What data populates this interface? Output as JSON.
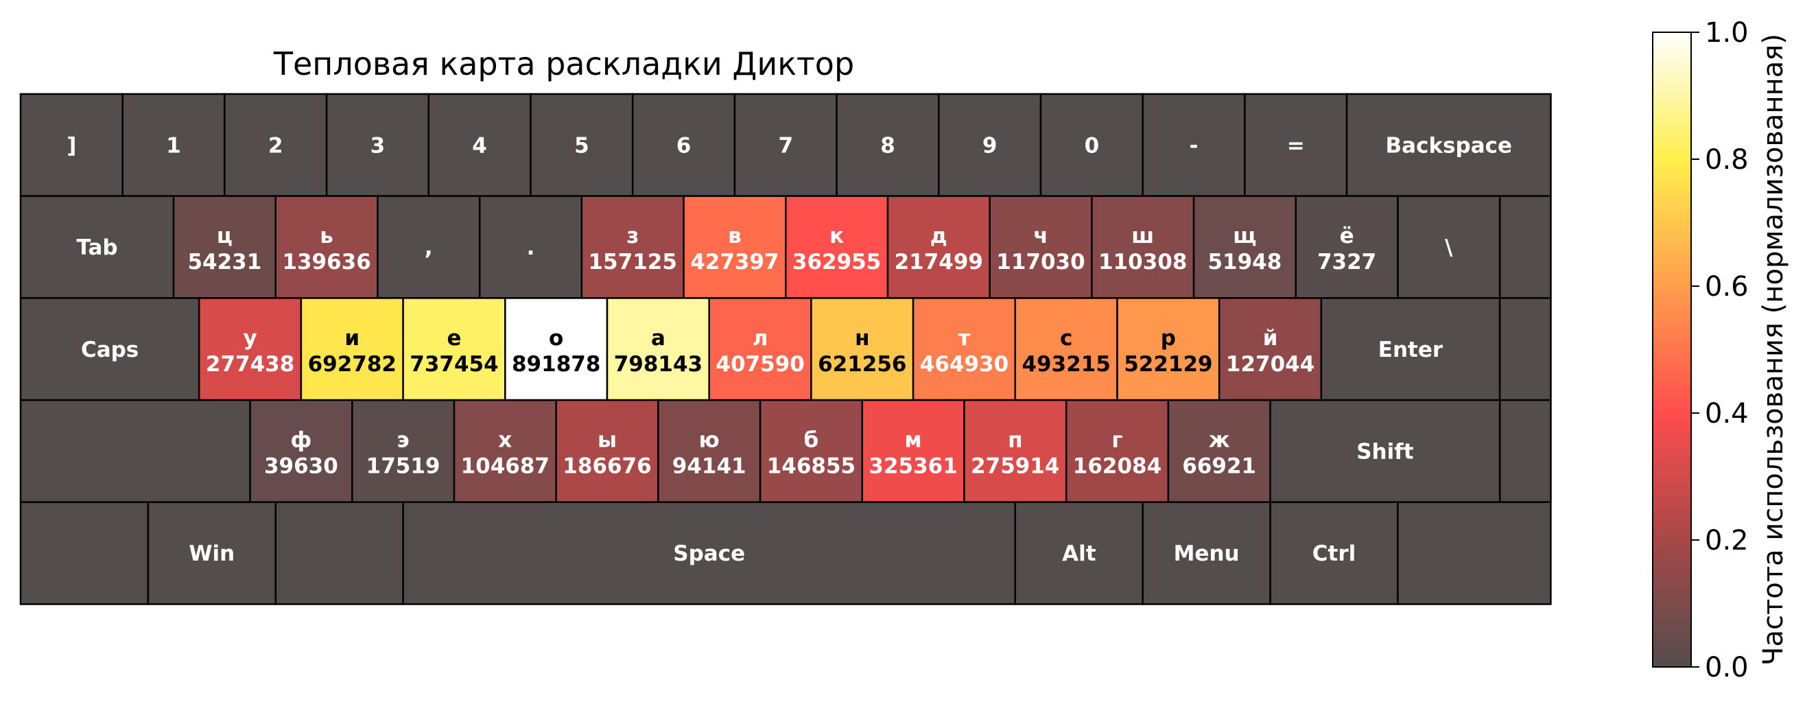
{
  "chart_data": {
    "type": "heatmap",
    "title": "Тепловая карта раскладки Диктор",
    "colorbar": {
      "label": "Частота использования (нормализованная)",
      "range": [
        0.0,
        1.0
      ],
      "ticks": [
        "0.0",
        "0.2",
        "0.4",
        "0.6",
        "0.8",
        "1.0"
      ],
      "colormap": "hot_r",
      "alpha": 0.7
    },
    "rows": [
      [
        {
          "label": "]",
          "count": null
        },
        {
          "label": "1",
          "count": null
        },
        {
          "label": "2",
          "count": null
        },
        {
          "label": "3",
          "count": null
        },
        {
          "label": "4",
          "count": null
        },
        {
          "label": "5",
          "count": null
        },
        {
          "label": "6",
          "count": null
        },
        {
          "label": "7",
          "count": null
        },
        {
          "label": "8",
          "count": null
        },
        {
          "label": "9",
          "count": null
        },
        {
          "label": "0",
          "count": null
        },
        {
          "label": "-",
          "count": null
        },
        {
          "label": "=",
          "count": null
        },
        {
          "label": "Backspace",
          "count": null
        }
      ],
      [
        {
          "label": "Tab",
          "count": null
        },
        {
          "label": "ц",
          "count": 54231
        },
        {
          "label": "ь",
          "count": 139636
        },
        {
          "label": ",",
          "count": null
        },
        {
          "label": ".",
          "count": null
        },
        {
          "label": "з",
          "count": 157125
        },
        {
          "label": "в",
          "count": 427397
        },
        {
          "label": "к",
          "count": 362955
        },
        {
          "label": "д",
          "count": 217499
        },
        {
          "label": "ч",
          "count": 117030
        },
        {
          "label": "ш",
          "count": 110308
        },
        {
          "label": "щ",
          "count": 51948
        },
        {
          "label": "ё",
          "count": 7327
        },
        {
          "label": "\\",
          "count": null
        },
        {
          "label": "",
          "count": null
        }
      ],
      [
        {
          "label": "Caps",
          "count": null
        },
        {
          "label": "у",
          "count": 277438
        },
        {
          "label": "и",
          "count": 692782
        },
        {
          "label": "е",
          "count": 737454
        },
        {
          "label": "о",
          "count": 891878
        },
        {
          "label": "а",
          "count": 798143
        },
        {
          "label": "л",
          "count": 407590
        },
        {
          "label": "н",
          "count": 621256
        },
        {
          "label": "т",
          "count": 464930
        },
        {
          "label": "с",
          "count": 493215
        },
        {
          "label": "р",
          "count": 522129
        },
        {
          "label": "й",
          "count": 127044
        },
        {
          "label": "Enter",
          "count": null
        },
        {
          "label": "",
          "count": null
        }
      ],
      [
        {
          "label": "",
          "count": null
        },
        {
          "label": "ф",
          "count": 39630
        },
        {
          "label": "э",
          "count": 17519
        },
        {
          "label": "х",
          "count": 104687
        },
        {
          "label": "ы",
          "count": 186676
        },
        {
          "label": "ю",
          "count": 94141
        },
        {
          "label": "б",
          "count": 146855
        },
        {
          "label": "м",
          "count": 325361
        },
        {
          "label": "п",
          "count": 275914
        },
        {
          "label": "г",
          "count": 162084
        },
        {
          "label": "ж",
          "count": 66921
        },
        {
          "label": "Shift",
          "count": null
        },
        {
          "label": "",
          "count": null
        }
      ],
      [
        {
          "label": "",
          "count": null
        },
        {
          "label": "Win",
          "count": null
        },
        {
          "label": "",
          "count": null
        },
        {
          "label": "Space",
          "count": null
        },
        {
          "label": "Alt",
          "count": null
        },
        {
          "label": "Menu",
          "count": null
        },
        {
          "label": "Ctrl",
          "count": null
        },
        {
          "label": "",
          "count": null
        }
      ]
    ]
  }
}
